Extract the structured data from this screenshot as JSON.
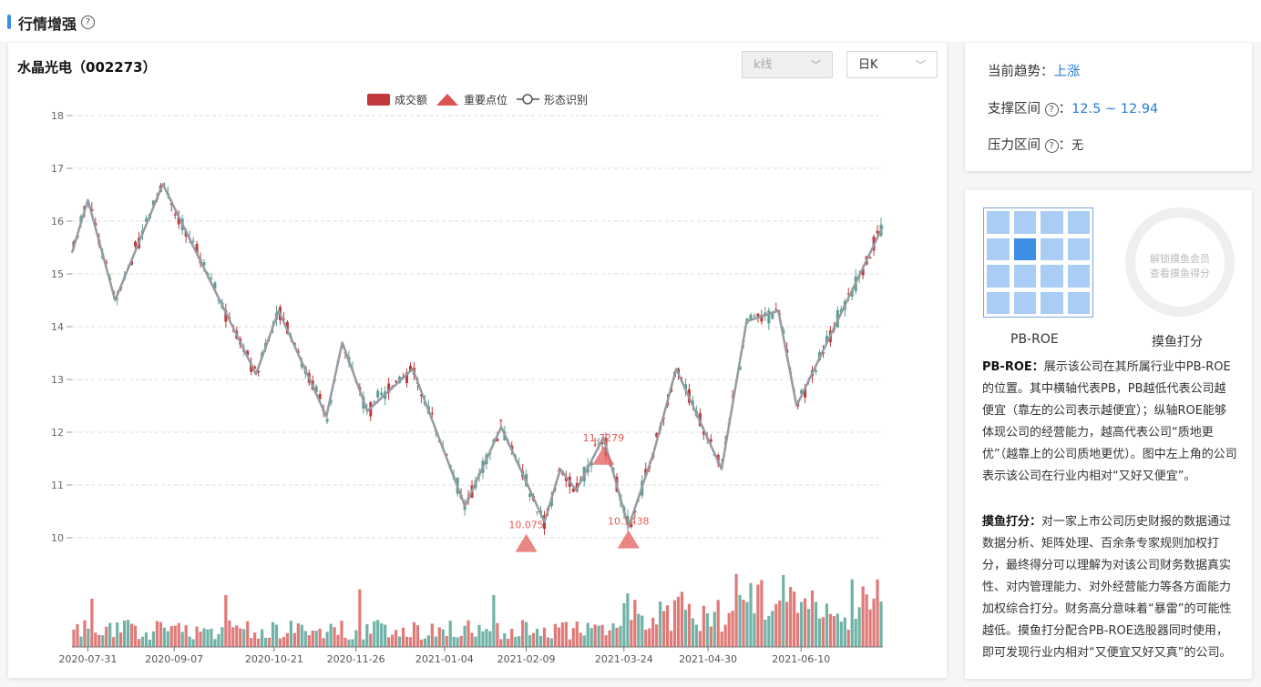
{
  "header": {
    "title": "行情增强",
    "help_icon": "question-circle-icon"
  },
  "stock": {
    "name": "水晶光电（002273）"
  },
  "controls": {
    "type_select": "k线",
    "period_select": "日K"
  },
  "legend": {
    "volume": "成交额",
    "key_points": "重要点位",
    "pattern": "形态识别"
  },
  "trend": {
    "current_label": "当前趋势：",
    "current_value": "上涨",
    "support_label": "支撑区间",
    "support_value": "12.5 ~ 12.94",
    "pressure_label": "压力区间",
    "pressure_value": "无"
  },
  "pb": {
    "grid_label": "PB-ROE",
    "score_label": "摸鱼打分",
    "locked_line1": "解锁摸鱼会员",
    "locked_line2": "查看摸鱼得分",
    "desc1_title": "PB-ROE：",
    "desc1_body": "展示该公司在其所属行业中PB-ROE的位置。其中横轴代表PB，PB越低代表公司越便宜（靠左的公司表示越便宜）；纵轴ROE能够体现公司的经营能力，越高代表公司“质地更优”（越靠上的公司质地更优）。图中左上角的公司表示该公司在行业内相对“又好又便宜”。",
    "desc2_title": "摸鱼打分：",
    "desc2_body": "对一家上市公司历史财报的数据通过数据分析、矩阵处理、百余条专家规则加权打分，最终得分可以理解为对该公司财务数据真实性、对内管理能力、对外经营能力等各方面能力加权综合打分。财务高分意味着“暴雷”的可能性越低。摸鱼打分配合PB-ROE选股器同时使用，即可发现行业内相对“又便宜又好又真”的公司。"
  },
  "colors": {
    "up": "#c0393b",
    "down": "#5a9e8f",
    "pattern": "#959ba3",
    "accent": "#2a7bd6"
  },
  "chart_data": {
    "type": "candlestick",
    "y_ticks": [
      18,
      17,
      16,
      15,
      14,
      13,
      12,
      11,
      10
    ],
    "ylim": [
      9,
      18
    ],
    "x_ticks": [
      "2020-07-31",
      "2020-09-07",
      "2020-10-21",
      "2020-11-26",
      "2021-01-04",
      "2021-02-09",
      "2021-03-24",
      "2021-04-30",
      "2021-06-10"
    ],
    "pattern_line": [
      [
        "2020-07-24",
        15.4
      ],
      [
        "2020-07-31",
        16.4
      ],
      [
        "2020-08-12",
        14.5
      ],
      [
        "2020-09-02",
        16.7
      ],
      [
        "2020-10-13",
        13.1
      ],
      [
        "2020-10-23",
        14.3
      ],
      [
        "2020-11-13",
        12.3
      ],
      [
        "2020-11-20",
        13.7
      ],
      [
        "2020-12-01",
        12.4
      ],
      [
        "2020-12-21",
        13.2
      ],
      [
        "2021-01-13",
        10.6
      ],
      [
        "2021-01-29",
        12.1
      ],
      [
        "2021-02-17",
        10.3
      ],
      [
        "2021-02-24",
        11.3
      ],
      [
        "2021-03-03",
        10.9
      ],
      [
        "2021-03-15",
        11.9
      ],
      [
        "2021-03-26",
        10.2
      ],
      [
        "2021-04-06",
        11.6
      ],
      [
        "2021-04-16",
        13.2
      ],
      [
        "2021-05-06",
        11.3
      ],
      [
        "2021-05-17",
        14.1
      ],
      [
        "2021-05-31",
        14.3
      ],
      [
        "2021-06-08",
        12.5
      ],
      [
        "2021-07-16",
        15.9
      ]
    ],
    "key_points": [
      {
        "label": "10.075",
        "value": 10.075,
        "date": "2021-02-09"
      },
      {
        "label": "11.7279",
        "value": 11.7279,
        "date": "2021-03-15"
      },
      {
        "label": "10.1438",
        "value": 10.1438,
        "date": "2021-03-26"
      }
    ]
  }
}
